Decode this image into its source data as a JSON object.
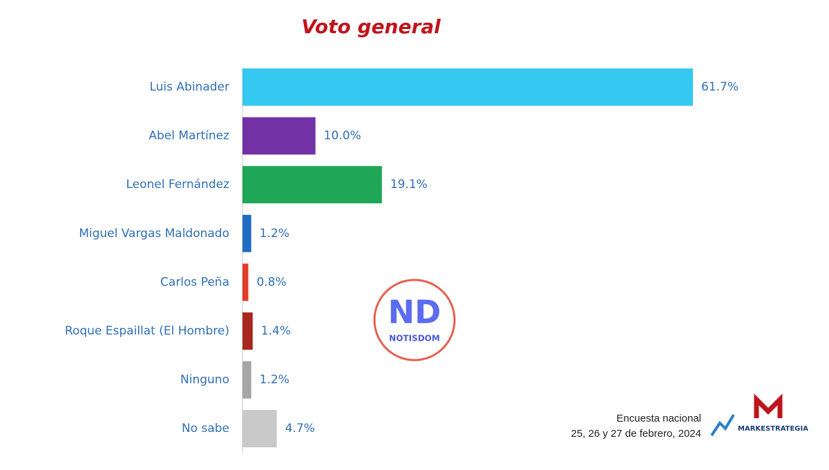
{
  "chart_data": {
    "type": "barh",
    "title": "Voto general",
    "categories": [
      "Luis Abinader",
      "Abel Martínez",
      "Leonel Fernández",
      "Miguel Vargas Maldonado",
      "Carlos Peña",
      "Roque Espaillat (El Hombre)",
      "Ninguno",
      "No sabe"
    ],
    "values": [
      61.7,
      10.0,
      19.1,
      1.2,
      0.8,
      1.4,
      1.2,
      4.7
    ],
    "value_labels": [
      "61.7%",
      "10.0%",
      "19.1%",
      "1.2%",
      "0.8%",
      "1.4%",
      "1.2%",
      "4.7%"
    ],
    "colors": [
      "#35c9f2",
      "#7232a6",
      "#1fa757",
      "#1f6dc2",
      "#e23b2a",
      "#a8281f",
      "#a6a6a6",
      "#c9c9c9"
    ]
  },
  "watermark": {
    "logo": "ND",
    "name": "NOTISDOM"
  },
  "source": {
    "line1": "Encuesta nacional",
    "line2": "25, 26 y 27 de febrero, 2024",
    "brand": "MARKESTRATEGIA"
  }
}
